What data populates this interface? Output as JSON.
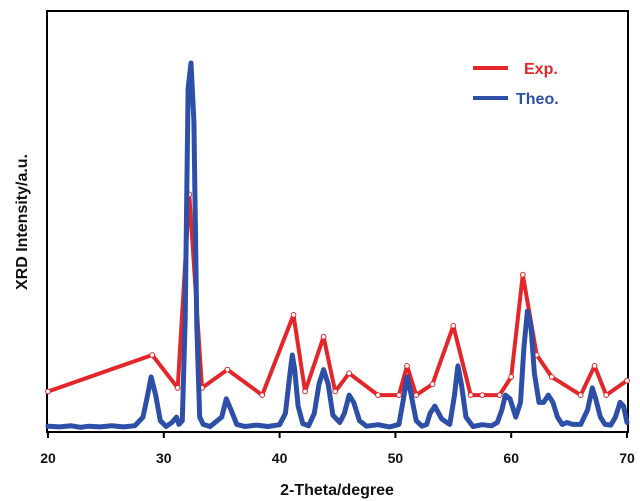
{
  "chart_data": {
    "type": "line",
    "xlabel": "2-Theta/degree",
    "ylabel": "XRD Intensity/a.u.",
    "xlim": [
      20,
      70
    ],
    "ylim": [
      0,
      100
    ],
    "xticks": [
      "20",
      "30",
      "40",
      "50",
      "60",
      "70"
    ],
    "grid": false,
    "legend_position": "top-right",
    "series": [
      {
        "name": "Exp.",
        "color": "#e3262a",
        "markers": "open-circle",
        "x": [
          20,
          29,
          31.2,
          32.2,
          33.3,
          35.5,
          38.5,
          41.2,
          42.2,
          43.8,
          44.8,
          46,
          48.5,
          50.3,
          51,
          51.8,
          53.2,
          55,
          56.5,
          57.5,
          59,
          60,
          61,
          62.2,
          63.5,
          66,
          67.2,
          68.2,
          70
        ],
        "y": [
          10,
          20,
          11,
          64,
          11,
          16,
          9,
          31,
          10,
          25,
          10,
          15,
          9,
          9,
          17,
          9,
          12,
          28,
          9,
          9,
          9,
          14,
          42,
          20,
          14,
          9,
          17,
          9,
          13
        ]
      },
      {
        "name": "Theo.",
        "color": "#2d4fa8",
        "x": [
          20,
          21,
          22,
          22.8,
          23.5,
          24.5,
          25.5,
          26.5,
          27.5,
          28.2,
          28.6,
          28.9,
          29.3,
          29.7,
          30.2,
          30.7,
          31.1,
          31.3,
          31.6,
          31.85,
          32.1,
          32.35,
          32.6,
          32.85,
          33.1,
          33.4,
          34,
          35,
          35.4,
          35.8,
          36.3,
          37,
          38,
          39,
          40,
          40.5,
          40.9,
          41.1,
          41.3,
          41.6,
          42,
          42.5,
          43,
          43.4,
          43.8,
          44.2,
          44.6,
          45.2,
          45.6,
          46,
          46.4,
          46.9,
          47.5,
          48.5,
          49.5,
          50.3,
          50.7,
          51,
          51.3,
          51.8,
          52.3,
          52.7,
          53,
          53.4,
          54,
          54.7,
          55.1,
          55.4,
          55.7,
          56.1,
          56.7,
          57.5,
          58.3,
          58.8,
          59.2,
          59.5,
          59.9,
          60.4,
          60.8,
          61.1,
          61.4,
          61.7,
          62,
          62.4,
          62.8,
          63.2,
          63.6,
          64,
          64.4,
          64.8,
          65.3,
          66,
          66.6,
          67,
          67.3,
          67.7,
          68.1,
          68.6,
          69,
          69.4,
          69.7,
          70
        ],
        "y": [
          0.5,
          0.3,
          0.6,
          0.2,
          0.5,
          0.3,
          0.6,
          0.3,
          0.6,
          3,
          9,
          14,
          9,
          2,
          0.4,
          1.5,
          3,
          1,
          2,
          30,
          93,
          100,
          84,
          28,
          3,
          1,
          0.4,
          3,
          8,
          5,
          1,
          0.4,
          0.8,
          0.4,
          0.9,
          4,
          15,
          20,
          16,
          6,
          1.2,
          0.6,
          4,
          12,
          16,
          12,
          3.5,
          1.5,
          4,
          9,
          7,
          2,
          0.5,
          0.9,
          0.3,
          1,
          8,
          14,
          10,
          2,
          0.5,
          1,
          4,
          6,
          2.5,
          1,
          9,
          17,
          12,
          3,
          0.4,
          0.9,
          0.6,
          1.5,
          5,
          9,
          8,
          3,
          7,
          22,
          32,
          28,
          15,
          7,
          7,
          9,
          7,
          3,
          1,
          1.5,
          1,
          1,
          5,
          11,
          8,
          3,
          1,
          0.8,
          3,
          7,
          6,
          1.5
        ]
      }
    ]
  }
}
